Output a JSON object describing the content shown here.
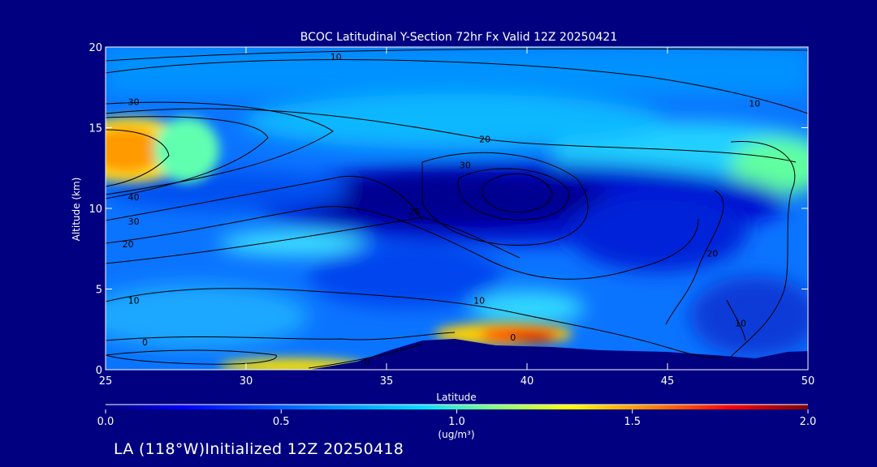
{
  "chart_data": {
    "type": "heatmap",
    "title": "BCOC Latitudinal Y-Section 72hr  Fx Valid 12Z 20250421",
    "xlabel": "Latitude",
    "ylabel": "Altitude (km)",
    "x_ticks": [
      25,
      30,
      35,
      40,
      45,
      50
    ],
    "y_ticks": [
      0,
      5,
      10,
      15,
      20
    ],
    "xlim": [
      25,
      50
    ],
    "ylim": [
      0,
      20
    ],
    "contour_labels": [
      {
        "lat": 33.2,
        "alt": 19.4,
        "text": "10"
      },
      {
        "lat": 26.0,
        "alt": 16.6,
        "text": "30"
      },
      {
        "lat": 26.0,
        "alt": 10.7,
        "text": "40"
      },
      {
        "lat": 26.0,
        "alt": 9.2,
        "text": "30"
      },
      {
        "lat": 25.8,
        "alt": 7.8,
        "text": "20"
      },
      {
        "lat": 26.0,
        "alt": 4.3,
        "text": "10"
      },
      {
        "lat": 26.4,
        "alt": 1.7,
        "text": "0"
      },
      {
        "lat": 34.3,
        "alt": 0.5,
        "text": "0"
      },
      {
        "lat": 39.5,
        "alt": 2.0,
        "text": "0"
      },
      {
        "lat": 38.5,
        "alt": 14.3,
        "text": "20"
      },
      {
        "lat": 37.8,
        "alt": 12.7,
        "text": "30"
      },
      {
        "lat": 36.0,
        "alt": 9.8,
        "text": "20"
      },
      {
        "lat": 38.3,
        "alt": 4.3,
        "text": "10"
      },
      {
        "lat": 48.1,
        "alt": 16.5,
        "text": "10"
      },
      {
        "lat": 46.6,
        "alt": 7.2,
        "text": "20"
      },
      {
        "lat": 47.6,
        "alt": 2.9,
        "text": "10"
      }
    ],
    "colorbar": {
      "min": 0.0,
      "max": 2.0,
      "tick_labels": [
        "0.0",
        "0.5",
        "1.0",
        "1.5",
        "2.0"
      ],
      "unit_label": "(ug/m³)",
      "colors": [
        "#000080",
        "#0000ff",
        "#0080ff",
        "#00e0ff",
        "#80ff80",
        "#ffff00",
        "#ff8000",
        "#ff0000",
        "#800000"
      ]
    },
    "legend": "none",
    "grid": false
  },
  "footer": "LA (118°W)Initialized 12Z 20250418"
}
